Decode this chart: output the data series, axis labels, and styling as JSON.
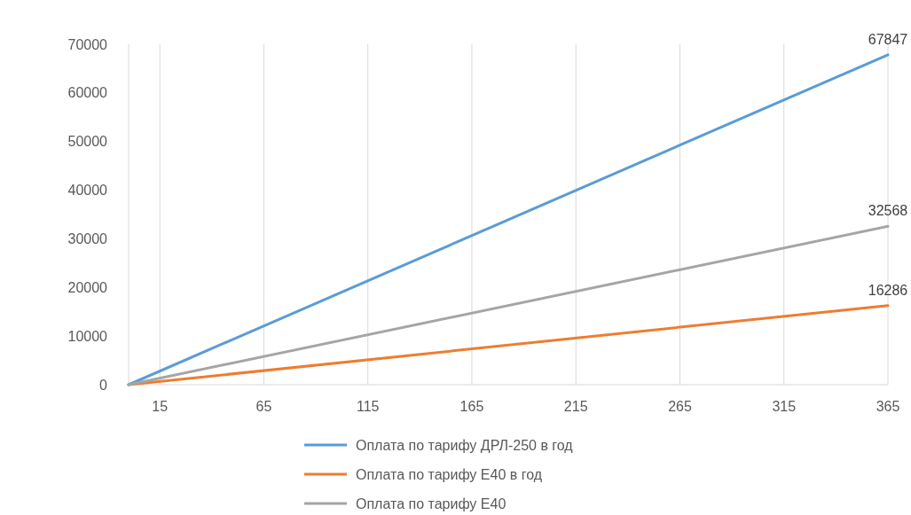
{
  "chart_data": {
    "type": "line",
    "x": [
      0,
      365
    ],
    "xlim": [
      0,
      365
    ],
    "xticks": [
      15,
      65,
      115,
      165,
      215,
      265,
      315,
      365
    ],
    "ylim": [
      0,
      70000
    ],
    "yticks": [
      0,
      10000,
      20000,
      30000,
      40000,
      50000,
      60000,
      70000
    ],
    "grid": "x",
    "legend": "bottom",
    "marker": "none",
    "line_style": "solid",
    "series": [
      {
        "name": "Оплата по тарифу ДРЛ-250 в год",
        "color": "#5b9bd5",
        "values": [
          0,
          67847
        ],
        "value_labels": [
          null,
          "67847"
        ]
      },
      {
        "name": "Оплата по тарифу E40 в год",
        "color": "#ed7d31",
        "values": [
          0,
          16286
        ],
        "value_labels": [
          null,
          "16286"
        ]
      },
      {
        "name": "Оплата по тарифу E40",
        "color": "#a5a5a5",
        "values": [
          0,
          32568
        ],
        "value_labels": [
          null,
          "32568"
        ]
      }
    ]
  }
}
